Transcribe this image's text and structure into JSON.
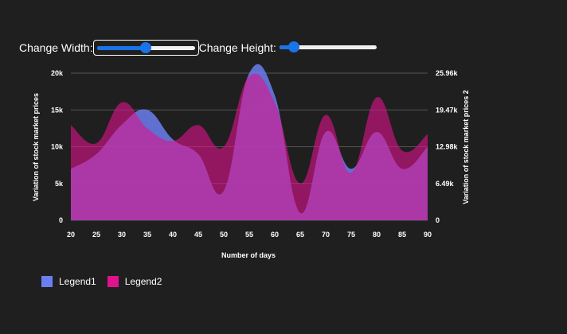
{
  "controls": {
    "width_label": "Change Width:",
    "height_label": "Change Height:",
    "width_slider_value": 0.5,
    "height_slider_value": 0.15
  },
  "chart_data": {
    "type": "area",
    "x": [
      20,
      25,
      30,
      35,
      40,
      45,
      50,
      55,
      60,
      65,
      70,
      75,
      80,
      85,
      90
    ],
    "xlabel": "Number of days",
    "ylabel": "Variation of stock market prices",
    "y2label": "Variation of stock market prices 2",
    "ylim": [
      0,
      20000
    ],
    "y2lim": [
      0,
      25960
    ],
    "yticks": [
      "0",
      "5k",
      "10k",
      "15k",
      "20k"
    ],
    "y2ticks": [
      "0",
      "6.49k",
      "12.98k",
      "19.47k",
      "25.96k"
    ],
    "grid": true,
    "series": [
      {
        "name": "Legend1",
        "axis": "left",
        "color": "#6b7ff0",
        "values": [
          7000,
          9000,
          13000,
          15000,
          11000,
          9000,
          4000,
          20000,
          17000,
          1000,
          12000,
          7000,
          12000,
          7000,
          10000
        ]
      },
      {
        "name": "Legend2",
        "axis": "right",
        "color": "#e0128c",
        "values": [
          16800,
          13600,
          20800,
          16200,
          14000,
          16800,
          13000,
          25400,
          20800,
          6500,
          18600,
          8400,
          21700,
          12300,
          15200
        ]
      }
    ],
    "legend_position": "bottom-left"
  }
}
